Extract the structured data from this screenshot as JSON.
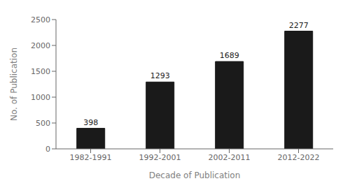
{
  "chart_data": {
    "type": "bar",
    "xlabel": "Decade of Publication",
    "ylabel": "No. of Publication",
    "categories": [
      "1982-1991",
      "1992-2001",
      "2002-2011",
      "2012-2022"
    ],
    "values": [
      398,
      1293,
      1689,
      2277
    ],
    "color": "#1a1a1a",
    "ylim": [
      0,
      2500
    ],
    "yticks": [
      0,
      500,
      1000,
      1500,
      2000,
      2500
    ],
    "data_labels": true,
    "grid": false
  }
}
